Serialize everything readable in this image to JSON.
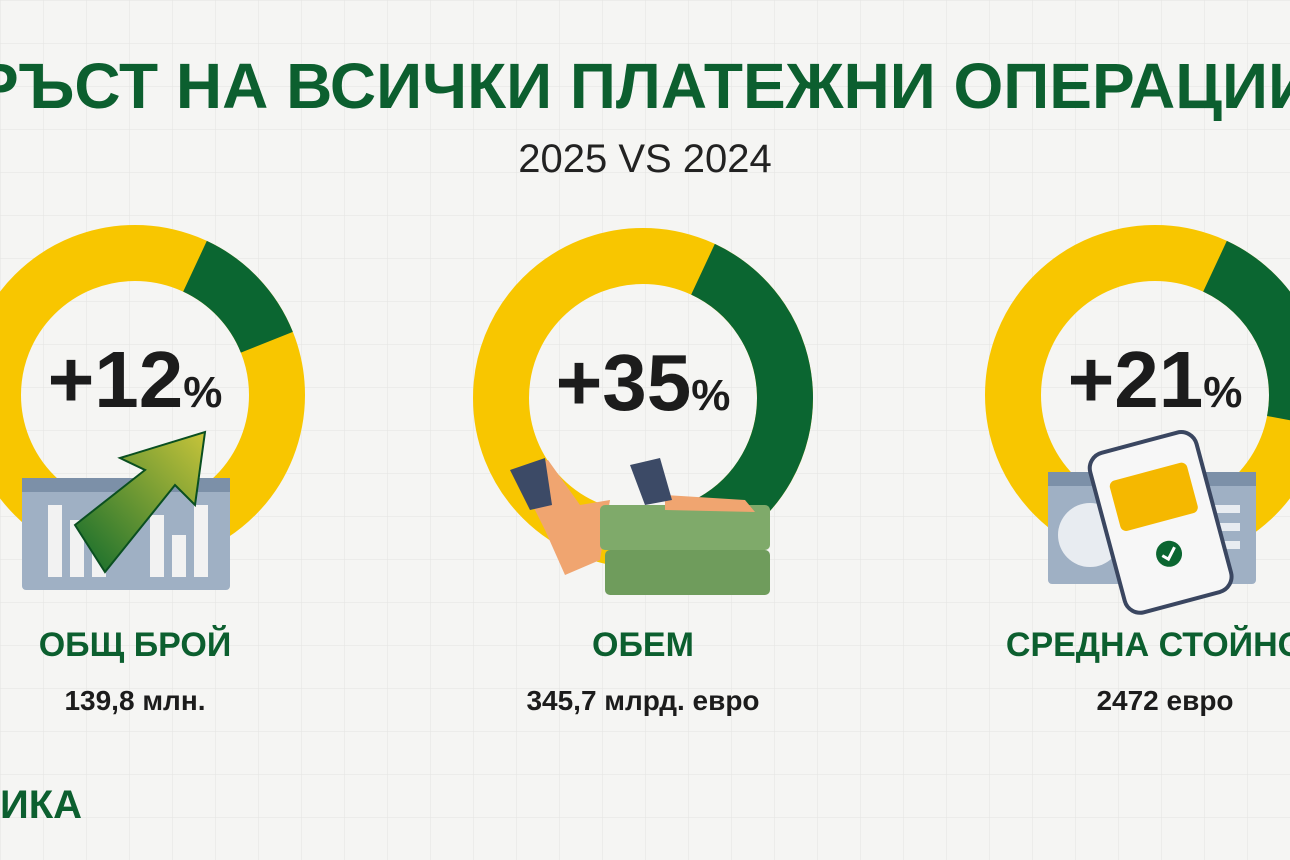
{
  "header": {
    "title": "РЪСТ НА ВСИЧКИ ПЛАТЕЖНИ ОПЕРАЦИИ",
    "subtitle": "2025 VS 2024"
  },
  "metrics": [
    {
      "value": 12,
      "label": "+12",
      "unit": "%",
      "name": "ОБЩ БРОЙ",
      "detail": "139,8 млн."
    },
    {
      "value": 35,
      "label": "+35",
      "unit": "%",
      "name": "ОБЕМ",
      "detail": "345,7 млрд. евро"
    },
    {
      "value": 21,
      "label": "+21",
      "unit": "%",
      "name": "СРЕДНА СТОЙНО",
      "detail": "2472 евро"
    }
  ],
  "footer": {
    "text": "ИКА"
  }
}
